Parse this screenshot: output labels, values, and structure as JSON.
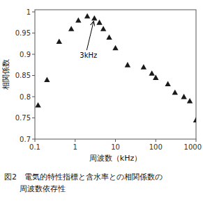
{
  "chart_data": {
    "type": "scatter",
    "x": [
      0.12,
      0.2,
      0.4,
      0.8,
      1.2,
      2.0,
      3.0,
      4.0,
      5.0,
      7.0,
      10.0,
      20.0,
      50.0,
      80.0,
      100.0,
      200.0,
      300.0,
      500.0,
      700.0,
      1000.0
    ],
    "values": [
      0.78,
      0.84,
      0.93,
      0.96,
      0.98,
      0.99,
      0.985,
      0.975,
      0.96,
      0.94,
      0.915,
      0.875,
      0.87,
      0.855,
      0.845,
      0.83,
      0.81,
      0.8,
      0.79,
      0.745
    ],
    "color": "#1a1a1a",
    "marker": "triangle",
    "xlabel": "周波数（kHz）",
    "ylabel": "相関係数",
    "log": "x",
    "xlim": [
      0.1,
      1000
    ],
    "ylim": [
      0.7,
      1.005
    ],
    "xticks": [
      0.1,
      1,
      10,
      100,
      1000
    ],
    "yticks": [
      0.7,
      0.75,
      0.8,
      0.85,
      0.9,
      0.95,
      1
    ],
    "grid": false,
    "annotations": [
      {
        "text": "3kHz",
        "x": 3.0,
        "y": 0.985,
        "text_x": 1.3,
        "text_y": 0.908
      }
    ],
    "caption": [
      "図2　電気的特性指標と含水率との相関係数の",
      "　　周波数依存性"
    ]
  }
}
